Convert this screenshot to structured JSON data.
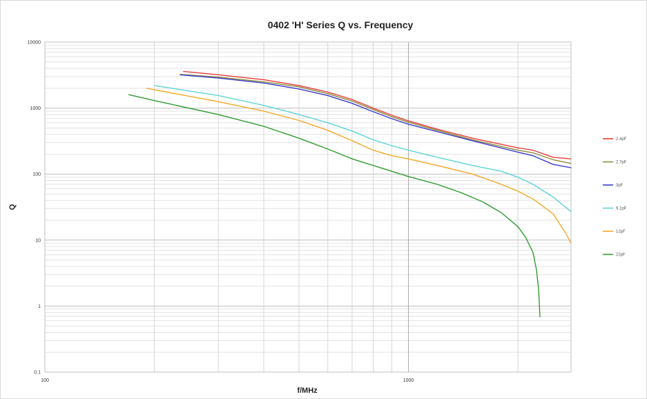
{
  "chart_data": {
    "type": "line",
    "title": "0402 'H' Series Q vs. Frequency",
    "xlabel": "f/MHz",
    "ylabel": "Q",
    "x_scale": "log",
    "y_scale": "log",
    "xlim": [
      100,
      2800
    ],
    "ylim": [
      0.1,
      10000
    ],
    "x_ticks": [
      "100",
      "1000"
    ],
    "y_ticks": [
      "0.1",
      "1",
      "10",
      "100",
      "1000",
      "10000"
    ],
    "grid": true,
    "legend_position": "right",
    "series": [
      {
        "name": "2.4pF",
        "color": "#e83a3a",
        "points": [
          [
            240,
            3600
          ],
          [
            300,
            3200
          ],
          [
            400,
            2700
          ],
          [
            500,
            2200
          ],
          [
            600,
            1750
          ],
          [
            700,
            1350
          ],
          [
            800,
            1000
          ],
          [
            900,
            780
          ],
          [
            1000,
            640
          ],
          [
            1200,
            480
          ],
          [
            1500,
            350
          ],
          [
            2000,
            250
          ],
          [
            2200,
            230
          ],
          [
            2500,
            180
          ],
          [
            2800,
            170
          ]
        ]
      },
      {
        "name": "2.7pF",
        "color": "#8a8a3a",
        "points": [
          [
            235,
            3250
          ],
          [
            300,
            2950
          ],
          [
            400,
            2500
          ],
          [
            500,
            2100
          ],
          [
            600,
            1650
          ],
          [
            700,
            1280
          ],
          [
            800,
            950
          ],
          [
            900,
            740
          ],
          [
            1000,
            610
          ],
          [
            1200,
            460
          ],
          [
            1500,
            330
          ],
          [
            2000,
            230
          ],
          [
            2200,
            210
          ],
          [
            2500,
            165
          ],
          [
            2800,
            145
          ]
        ]
      },
      {
        "name": "3pF",
        "color": "#3a3ac8",
        "points": [
          [
            235,
            3200
          ],
          [
            300,
            2850
          ],
          [
            400,
            2400
          ],
          [
            500,
            1950
          ],
          [
            600,
            1550
          ],
          [
            700,
            1180
          ],
          [
            800,
            880
          ],
          [
            900,
            690
          ],
          [
            1000,
            570
          ],
          [
            1200,
            440
          ],
          [
            1500,
            320
          ],
          [
            2000,
            215
          ],
          [
            2200,
            190
          ],
          [
            2500,
            140
          ],
          [
            2800,
            125
          ]
        ]
      },
      {
        "name": "9.1pF",
        "color": "#5cd4d8",
        "points": [
          [
            200,
            2200
          ],
          [
            300,
            1550
          ],
          [
            400,
            1100
          ],
          [
            500,
            800
          ],
          [
            600,
            600
          ],
          [
            700,
            450
          ],
          [
            800,
            330
          ],
          [
            900,
            270
          ],
          [
            1000,
            230
          ],
          [
            1200,
            180
          ],
          [
            1500,
            135
          ],
          [
            1800,
            110
          ],
          [
            2000,
            90
          ],
          [
            2200,
            70
          ],
          [
            2500,
            45
          ],
          [
            2800,
            27
          ]
        ]
      },
      {
        "name": "12pF",
        "color": "#f5a623",
        "points": [
          [
            190,
            2000
          ],
          [
            300,
            1250
          ],
          [
            400,
            900
          ],
          [
            500,
            650
          ],
          [
            600,
            460
          ],
          [
            700,
            320
          ],
          [
            800,
            230
          ],
          [
            900,
            190
          ],
          [
            1000,
            170
          ],
          [
            1200,
            135
          ],
          [
            1500,
            100
          ],
          [
            1800,
            70
          ],
          [
            2000,
            55
          ],
          [
            2200,
            42
          ],
          [
            2500,
            25
          ],
          [
            2700,
            13
          ],
          [
            2800,
            9
          ]
        ]
      },
      {
        "name": "22pF",
        "color": "#2e9a2e",
        "points": [
          [
            170,
            1600
          ],
          [
            200,
            1300
          ],
          [
            300,
            800
          ],
          [
            400,
            530
          ],
          [
            500,
            350
          ],
          [
            600,
            240
          ],
          [
            700,
            170
          ],
          [
            800,
            135
          ],
          [
            900,
            110
          ],
          [
            1000,
            92
          ],
          [
            1200,
            70
          ],
          [
            1400,
            52
          ],
          [
            1600,
            38
          ],
          [
            1800,
            26
          ],
          [
            2000,
            16
          ],
          [
            2100,
            11
          ],
          [
            2200,
            6.5
          ],
          [
            2250,
            3.5
          ],
          [
            2280,
            1.8
          ],
          [
            2300,
            0.68
          ]
        ]
      }
    ]
  }
}
